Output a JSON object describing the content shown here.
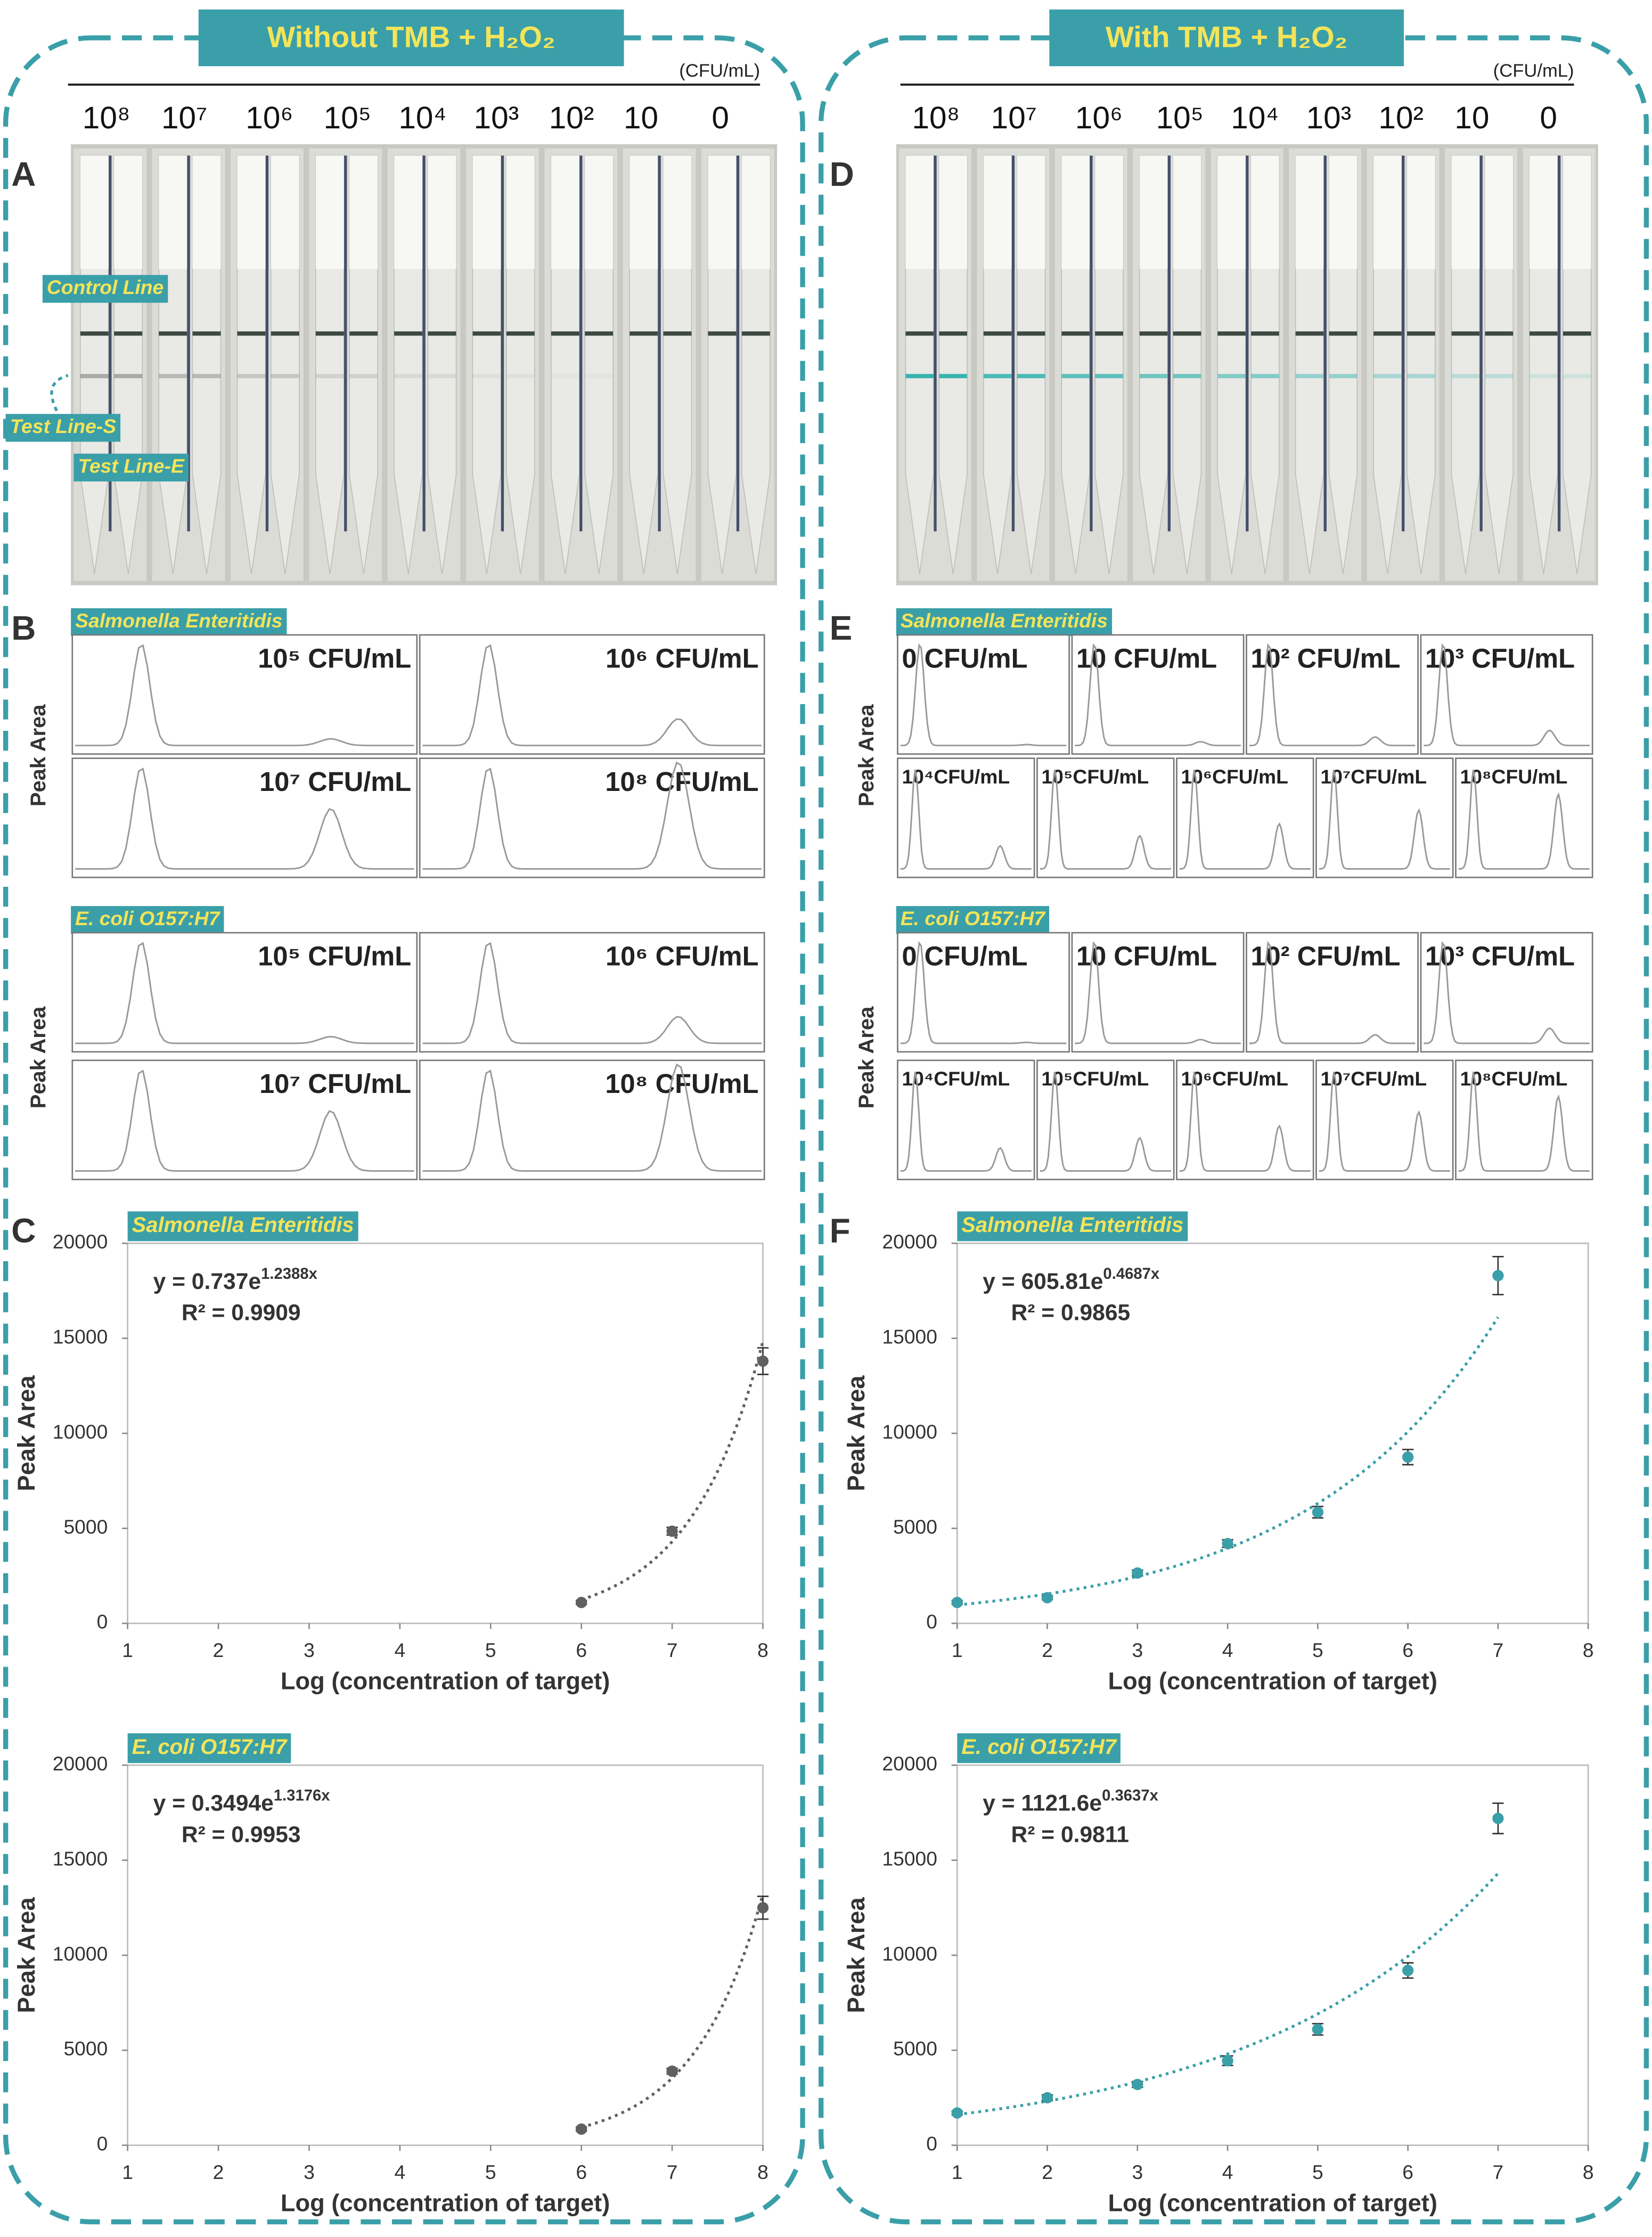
{
  "left": {
    "header": "Without TMB + H₂O₂",
    "unit": "(CFU/mL)",
    "concentrations": [
      "10⁸",
      "10⁷",
      "10⁶",
      "10⁵",
      "10⁴",
      "10³",
      "10²",
      "10",
      "0"
    ],
    "panel_labels": [
      "A",
      "B",
      "C"
    ],
    "annotations": [
      "Control Line",
      "Test Line-S",
      "Test Line-E"
    ],
    "chromatograms": [
      {
        "species": "Salmonella Enteritidis",
        "y_label": "Peak Area",
        "labels": [
          "10⁵ CFU/mL",
          "10⁶ CFU/mL",
          "10⁷ CFU/mL",
          "10⁸ CFU/mL"
        ]
      },
      {
        "species": "E. coli O157:H7",
        "y_label": "Peak Area",
        "labels": [
          "10⁵ CFU/mL",
          "10⁶ CFU/mL",
          "10⁷ CFU/mL",
          "10⁸ CFU/mL"
        ]
      }
    ]
  },
  "right": {
    "header": "With TMB + H₂O₂",
    "unit": "(CFU/mL)",
    "concentrations": [
      "10⁸",
      "10⁷",
      "10⁶",
      "10⁵",
      "10⁴",
      "10³",
      "10²",
      "10",
      "0"
    ],
    "panel_labels": [
      "D",
      "E",
      "F"
    ],
    "chromatograms": [
      {
        "species": "Salmonella Enteritidis",
        "y_label": "Peak Area",
        "labels": [
          "0 CFU/mL",
          "10 CFU/mL",
          "10² CFU/mL",
          "10³ CFU/mL",
          "10⁴CFU/mL",
          "10⁵CFU/mL",
          "10⁶CFU/mL",
          "10⁷CFU/mL",
          "10⁸CFU/mL"
        ]
      },
      {
        "species": "E. coli O157:H7",
        "y_label": "Peak Area",
        "labels": [
          "0 CFU/mL",
          "10 CFU/mL",
          "10² CFU/mL",
          "10³ CFU/mL",
          "10⁴CFU/mL",
          "10⁵CFU/mL",
          "10⁶CFU/mL",
          "10⁷CFU/mL",
          "10⁸CFU/mL"
        ]
      }
    ]
  },
  "chart_data": [
    {
      "type": "scatter",
      "title": "Salmonella Enteritidis",
      "x_label": "Log (concentration of target)",
      "y_label": "Peak Area",
      "x": [
        6,
        7,
        8
      ],
      "values": [
        1100,
        4850,
        13800
      ],
      "errors": [
        100,
        200,
        700
      ],
      "color": "#606060",
      "equation_base": "y = 0.737e",
      "equation_exponent": "1.2388x",
      "r_squared": "R² = 0.9909",
      "fit": {
        "a": 0.737,
        "b": 1.2388
      },
      "xlim": [
        1,
        8
      ],
      "ylim": [
        0,
        20000
      ],
      "xticks": [
        1,
        2,
        3,
        4,
        5,
        6,
        7,
        8
      ],
      "yticks": [
        0,
        5000,
        10000,
        15000,
        20000
      ]
    },
    {
      "type": "scatter",
      "title": "E. coli O157:H7",
      "x_label": "Log (concentration of target)",
      "y_label": "Peak Area",
      "x": [
        6,
        7,
        8
      ],
      "values": [
        850,
        3900,
        12500
      ],
      "errors": [
        100,
        150,
        600
      ],
      "color": "#606060",
      "equation_base": "y = 0.3494e",
      "equation_exponent": "1.3176x",
      "r_squared": "R² = 0.9953",
      "fit": {
        "a": 0.3494,
        "b": 1.3176
      },
      "xlim": [
        1,
        8
      ],
      "ylim": [
        0,
        20000
      ],
      "xticks": [
        1,
        2,
        3,
        4,
        5,
        6,
        7,
        8
      ],
      "yticks": [
        0,
        5000,
        10000,
        15000,
        20000
      ]
    },
    {
      "type": "scatter",
      "title": "Salmonella Enteritidis",
      "x_label": "Log (concentration of target)",
      "y_label": "Peak Area",
      "x": [
        1,
        2,
        3,
        4,
        5,
        6,
        7
      ],
      "values": [
        1100,
        1350,
        2650,
        4200,
        5850,
        8750,
        18300
      ],
      "errors": [
        100,
        100,
        150,
        200,
        300,
        400,
        1000
      ],
      "color": "#3a9fa8",
      "equation_base": "y = 605.81e",
      "equation_exponent": "0.4687x",
      "r_squared": "R² = 0.9865",
      "fit": {
        "a": 605.81,
        "b": 0.4687
      },
      "xlim": [
        1,
        8
      ],
      "ylim": [
        0,
        20000
      ],
      "xticks": [
        1,
        2,
        3,
        4,
        5,
        6,
        7,
        8
      ],
      "yticks": [
        0,
        5000,
        10000,
        15000,
        20000
      ]
    },
    {
      "type": "scatter",
      "title": "E. coli O157:H7",
      "x_label": "Log (concentration of target)",
      "y_label": "Peak Area",
      "x": [
        1,
        2,
        3,
        4,
        5,
        6,
        7
      ],
      "values": [
        1700,
        2500,
        3200,
        4450,
        6100,
        9200,
        17200
      ],
      "errors": [
        100,
        150,
        150,
        250,
        300,
        400,
        800
      ],
      "color": "#3a9fa8",
      "equation_base": "y = 1121.6e",
      "equation_exponent": "0.3637x",
      "r_squared": "R² = 0.9811",
      "fit": {
        "a": 1121.6,
        "b": 0.3637
      },
      "xlim": [
        1,
        8
      ],
      "ylim": [
        0,
        20000
      ],
      "xticks": [
        1,
        2,
        3,
        4,
        5,
        6,
        7,
        8
      ],
      "yticks": [
        0,
        5000,
        10000,
        15000,
        20000
      ]
    }
  ]
}
